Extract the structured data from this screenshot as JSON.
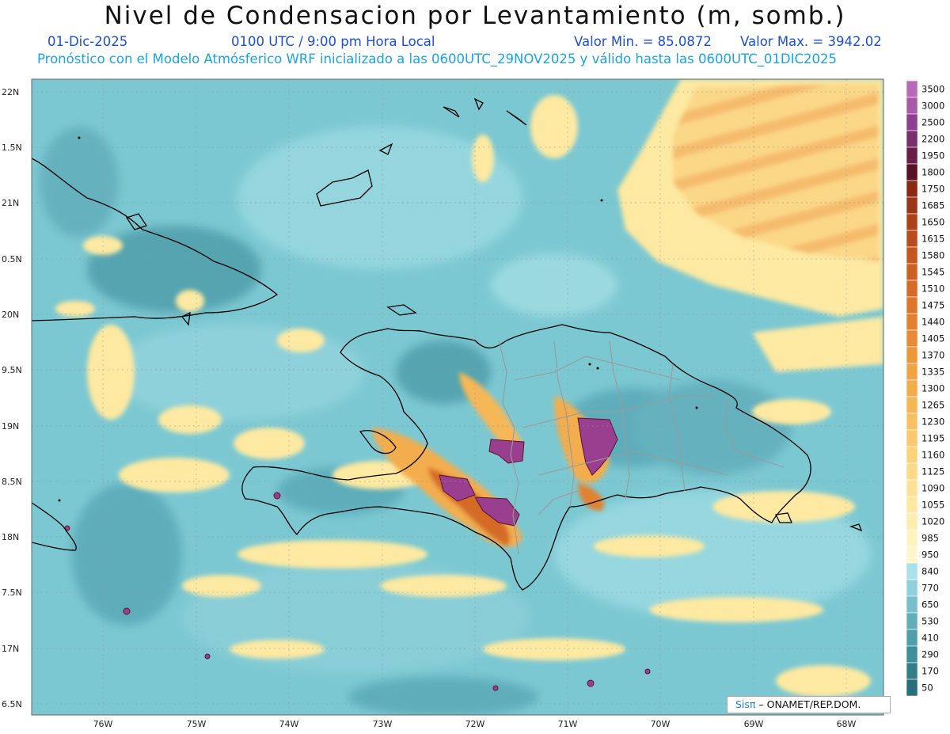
{
  "title": "Nivel de Condensacion por Levantamiento (m, somb.)",
  "date": "01-Dic-2025",
  "time": "0100 UTC / 9:00 pm Hora Local",
  "min_label": "Valor Min. = 85.0872",
  "max_label": "Valor Max. = 3942.02",
  "forecast_line": "Pronóstico con el Modelo Atmósferico WRF inicializado a las 0600UTC_29NOV2025 y válido hasta las  0600UTC_01DIC2025",
  "credit": {
    "logo": "Sisπ",
    "text": "– ONAMET/REP.DOM."
  },
  "lat_labels": [
    "22N",
    "1.5N",
    "21N",
    "0.5N",
    "20N",
    "9.5N",
    "19N",
    "8.5N",
    "18N",
    "7.5N",
    "17N",
    "6.5N"
  ],
  "lon_labels": [
    "76W",
    "75W",
    "74W",
    "73W",
    "72W",
    "71W",
    "70W",
    "69W",
    "68W"
  ],
  "colorbar": {
    "labels": [
      "3500",
      "3000",
      "2500",
      "2200",
      "1950",
      "1800",
      "1750",
      "1685",
      "1650",
      "1615",
      "1580",
      "1545",
      "1510",
      "1475",
      "1440",
      "1405",
      "1370",
      "1335",
      "1300",
      "1265",
      "1230",
      "1195",
      "1160",
      "1125",
      "1090",
      "1055",
      "1020",
      "985",
      "950",
      "840",
      "770",
      "650",
      "530",
      "410",
      "290",
      "170",
      "50"
    ],
    "colors": [
      "#b869b8",
      "#a85aa8",
      "#8f3f8f",
      "#7a2f6e",
      "#6a1f48",
      "#5a1228",
      "#8a2a14",
      "#9c3516",
      "#ad4219",
      "#b94c1c",
      "#c4571f",
      "#cd6122",
      "#d56b26",
      "#dc762a",
      "#e2812f",
      "#e78c35",
      "#ec973c",
      "#f0a244",
      "#f3ad4d",
      "#f6b757",
      "#f8c062",
      "#fac96e",
      "#fcd27b",
      "#fdda88",
      "#fee196",
      "#fee8a3",
      "#feedb1",
      "#fef2be",
      "#fff6cc",
      "#a9e1ea",
      "#8fd0dc",
      "#78bfcc",
      "#62aebb",
      "#4f9eab",
      "#3f8e9b",
      "#327f8b",
      "#286f7c"
    ]
  },
  "colors": {
    "sea_base": "#7cc8d2",
    "land_blue": "#5aa9b8",
    "yellow": "#fde9a1",
    "orange": "#f2a24a",
    "dark_orange": "#d2661f",
    "purple": "#9a3f90",
    "coast": "#000000",
    "border": "#888888"
  }
}
